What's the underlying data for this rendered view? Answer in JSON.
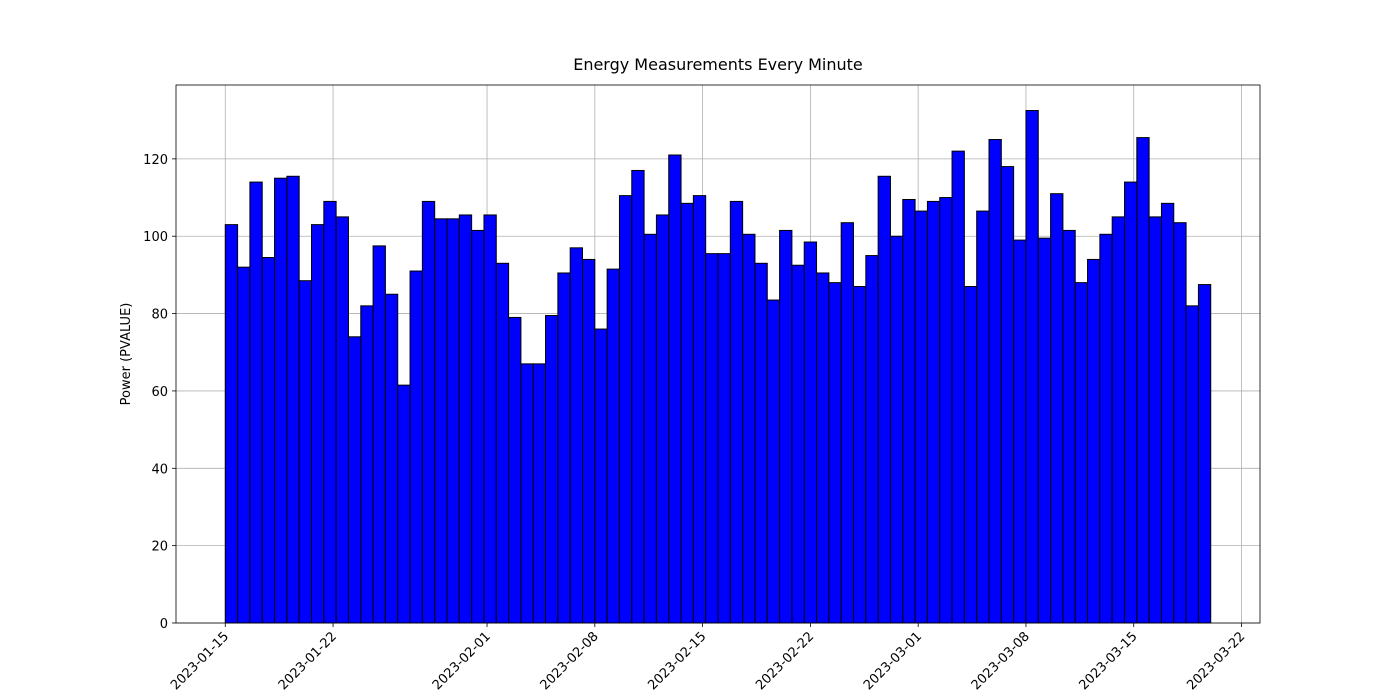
{
  "chart_data": {
    "type": "histogram",
    "title": "Energy Measurements Every Minute",
    "y_label": "Power (PVALUE)",
    "bins": [
      0,
      0.8,
      1.6,
      2.4,
      3.2,
      4,
      4.8,
      5.6,
      6.4,
      7.2,
      8,
      8.8,
      9.6,
      10.4,
      11.2,
      12,
      12.8,
      13.6,
      14.4,
      15.2,
      16,
      16.8,
      17.6,
      18.4,
      19.2,
      20,
      20.8,
      21.6,
      22.4,
      23.2,
      24,
      24.8,
      25.6,
      26.4,
      27.2,
      28,
      28.8,
      29.6,
      30.4,
      31.2,
      32,
      32.8,
      33.6,
      34.4,
      35.2,
      36,
      36.8,
      37.6,
      38.4,
      39.2,
      40,
      40.8,
      41.6,
      42.4,
      43.2,
      44,
      44.8,
      45.6,
      46.4,
      47.2,
      48,
      48.8,
      49.6,
      50.4,
      51.2,
      52,
      52.8,
      53.6,
      54.4,
      55.2,
      56,
      56.8,
      57.6,
      58.4,
      59.2,
      60,
      60.8,
      61.6,
      62.4,
      63.2,
      64
    ],
    "values": [
      103,
      92,
      114,
      94.5,
      115,
      115.5,
      88.5,
      103,
      109,
      105,
      74,
      82,
      97.5,
      85,
      61.5,
      91,
      109,
      104.5,
      104.5,
      105.5,
      101.5,
      105.5,
      93,
      79,
      67,
      67,
      79.5,
      90.5,
      97,
      94,
      76,
      91.5,
      110.5,
      117,
      100.5,
      105.5,
      121,
      108.5,
      110.5,
      95.5,
      95.5,
      109,
      100.5,
      93,
      83.5,
      101.5,
      92.5,
      98.5,
      90.5,
      88,
      103.5,
      87,
      95,
      115.5,
      100,
      109.5,
      106.5,
      109,
      110,
      122,
      87,
      106.5,
      125,
      118,
      99,
      132.5,
      99.5,
      111,
      101.5,
      88,
      94,
      100.5,
      105,
      114,
      125.5,
      105,
      108.5,
      103.5,
      82,
      87.5
    ],
    "color": "#0000ff",
    "edgecolor": "#000000",
    "xlim": [
      -3.2,
      67.2
    ],
    "xticks": [
      {
        "value": 0,
        "label": "2023-01-15"
      },
      {
        "value": 7,
        "label": "2023-01-22"
      },
      {
        "value": 17,
        "label": "2023-02-01"
      },
      {
        "value": 24,
        "label": "2023-02-08"
      },
      {
        "value": 31,
        "label": "2023-02-15"
      },
      {
        "value": 38,
        "label": "2023-02-22"
      },
      {
        "value": 45,
        "label": "2023-03-01"
      },
      {
        "value": 52,
        "label": "2023-03-08"
      },
      {
        "value": 59,
        "label": "2023-03-15"
      },
      {
        "value": 66,
        "label": "2023-03-22"
      }
    ],
    "ylim": [
      0,
      139.1
    ],
    "yticks": [
      0,
      20,
      40,
      60,
      80,
      100,
      120
    ],
    "grid": true
  }
}
